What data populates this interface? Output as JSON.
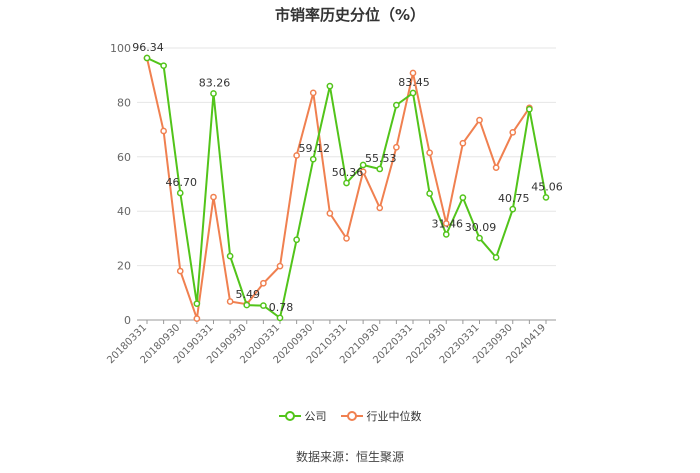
{
  "chart_data": {
    "type": "line",
    "title": "市销率历史分位（%）",
    "xlabel": "",
    "ylabel": "",
    "ylim": [
      0,
      100
    ],
    "yticks": [
      0,
      20,
      40,
      60,
      80,
      100
    ],
    "x": [
      "20180331",
      "20180630",
      "20180930",
      "20181231",
      "20190331",
      "20190630",
      "20190930",
      "20191231",
      "20200331",
      "20200630",
      "20200930",
      "20201231",
      "20210331",
      "20210630",
      "20210930",
      "20211231",
      "20220331",
      "20220630",
      "20220930",
      "20221231",
      "20230331",
      "20230630",
      "20230930",
      "20231231",
      "20240419"
    ],
    "xtick_labels": [
      "20180331",
      "20180930",
      "20190331",
      "20190930",
      "20200331",
      "20200930",
      "20210331",
      "20210930",
      "20220331",
      "20220930",
      "20230331",
      "20230930",
      "20240419"
    ],
    "grid": "horizontal",
    "legend_position": "bottom",
    "series": [
      {
        "name": "公司",
        "color": "#52c41a",
        "values": [
          96.34,
          93.5,
          46.7,
          6.0,
          83.26,
          23.5,
          5.49,
          5.3,
          0.78,
          29.5,
          59.12,
          86.0,
          50.36,
          57.0,
          55.53,
          79.0,
          83.45,
          46.5,
          31.46,
          45.0,
          30.09,
          23.0,
          40.75,
          77.5,
          45.06
        ],
        "labels": {
          "0": "96.34",
          "2": "46.70",
          "4": "83.26",
          "6": "5.49",
          "8": "0.78",
          "10": "59.12",
          "12": "50.36",
          "14": "55.53",
          "16": "83.45",
          "18": "31.46",
          "20": "30.09",
          "22": "40.75",
          "24": "45.06"
        }
      },
      {
        "name": "行业中位数",
        "color": "#f08050",
        "values": [
          96.3,
          69.5,
          18.0,
          0.5,
          45.2,
          6.8,
          5.8,
          13.5,
          19.8,
          60.5,
          83.5,
          39.2,
          30.0,
          54.5,
          41.2,
          63.5,
          90.8,
          61.5,
          35.5,
          65.0,
          73.5,
          56.0,
          69.0,
          78.0,
          null
        ]
      }
    ]
  },
  "source": "数据来源：恒生聚源"
}
